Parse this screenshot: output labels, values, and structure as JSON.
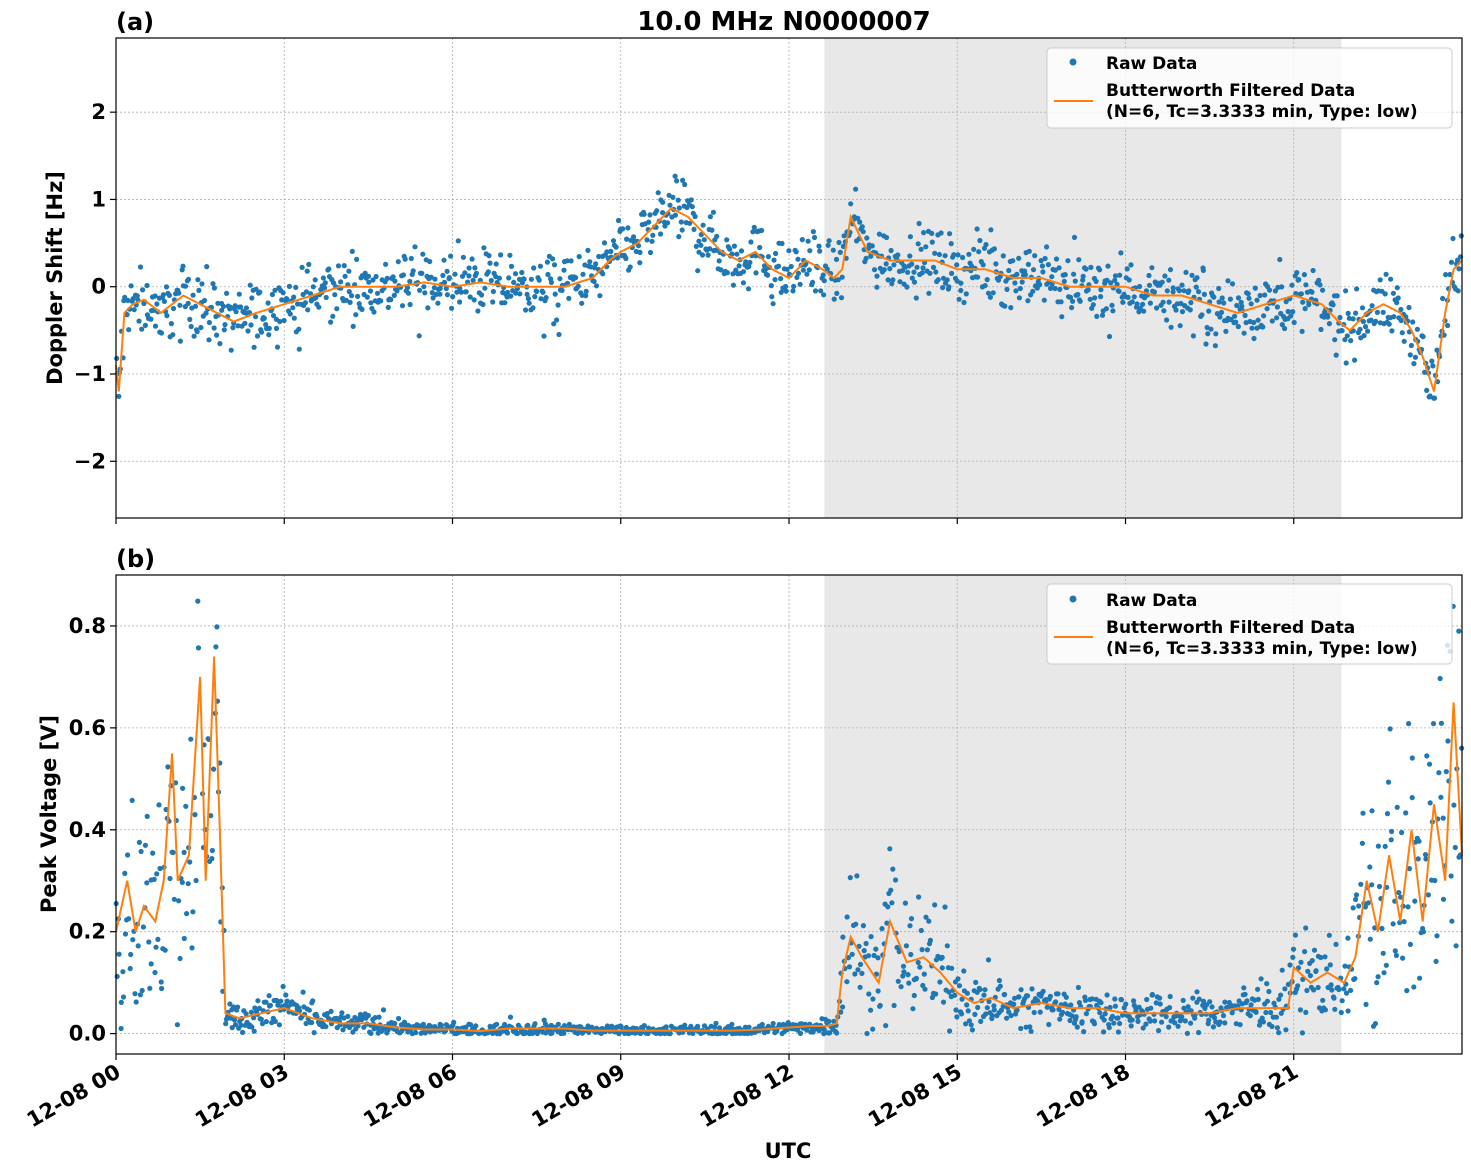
{
  "figure": {
    "title": "10.0 MHz N0000007",
    "xlabel": "UTC"
  },
  "colors": {
    "raw": "#1f77b4",
    "filtered": "#ff7f0e",
    "night_shade": "#e8e8e8",
    "grid": "#b0b0b0"
  },
  "legend": {
    "raw_label": "Raw Data",
    "filtered_line1": "Butterworth Filtered Data",
    "filtered_line2": "(N=6, Tc=3.3333 min, Type: low)"
  },
  "chart_data": [
    {
      "type": "scatter",
      "panel": "(a)",
      "title": "10.0 MHz N0000007",
      "xlabel": "",
      "ylabel": "Doppler Shift [Hz]",
      "xlim_hours": [
        0,
        24
      ],
      "ylim": [
        -2.65,
        2.85
      ],
      "yticks": [
        -2,
        -1,
        0,
        1,
        2
      ],
      "ytick_labels": [
        "−2",
        "−1",
        "0",
        "1",
        "2"
      ],
      "grid": true,
      "legend_position": "top-right",
      "shaded_region_hours": [
        12.63,
        21.85
      ],
      "series": [
        {
          "name": "Raw Data",
          "style": "points",
          "spread_hz": 0.25,
          "x_hours": [
            0,
            0.05,
            0.15,
            0.3,
            0.5,
            0.8,
            1.2,
            1.5,
            1.8,
            2.1,
            2.5,
            3.0,
            3.5,
            4.0,
            4.5,
            5.0,
            5.5,
            6.0,
            6.5,
            7.0,
            7.5,
            8.0,
            8.5,
            8.8,
            9.0,
            9.3,
            9.6,
            9.9,
            10.2,
            10.5,
            10.8,
            11.1,
            11.4,
            11.7,
            12.0,
            12.3,
            12.6,
            12.8,
            12.95,
            13.1,
            13.4,
            13.8,
            14.2,
            14.6,
            15.0,
            15.5,
            16.0,
            16.5,
            17.0,
            17.5,
            18.0,
            18.5,
            19.0,
            19.5,
            20.0,
            20.5,
            21.0,
            21.5,
            21.8,
            22.0,
            22.3,
            22.6,
            22.9,
            23.1,
            23.3,
            23.5,
            23.7,
            23.85,
            24.0
          ],
          "y": [
            -0.9,
            -1.2,
            -0.3,
            -0.2,
            -0.15,
            -0.3,
            -0.1,
            -0.2,
            -0.3,
            -0.4,
            -0.3,
            -0.2,
            -0.1,
            0.0,
            0.0,
            0.0,
            0.05,
            0.0,
            0.05,
            0.0,
            0.0,
            0.0,
            0.1,
            0.3,
            0.4,
            0.5,
            0.7,
            0.9,
            0.8,
            0.6,
            0.4,
            0.3,
            0.4,
            0.2,
            0.1,
            0.3,
            0.2,
            0.1,
            0.2,
            0.8,
            0.4,
            0.3,
            0.3,
            0.3,
            0.2,
            0.2,
            0.1,
            0.1,
            0.0,
            0.0,
            0.0,
            -0.1,
            -0.1,
            -0.2,
            -0.3,
            -0.2,
            -0.1,
            -0.2,
            -0.4,
            -0.5,
            -0.3,
            -0.2,
            -0.3,
            -0.5,
            -0.8,
            -1.2,
            -0.3,
            0.2,
            0.3
          ]
        },
        {
          "name": "Butterworth Filtered Data (N=6, Tc=3.3333 min, Type: low)",
          "style": "line",
          "x_hours": [
            0,
            0.05,
            0.15,
            0.3,
            0.5,
            0.8,
            1.2,
            1.5,
            1.8,
            2.1,
            2.5,
            3.0,
            3.5,
            4.0,
            4.5,
            5.0,
            5.5,
            6.0,
            6.5,
            7.0,
            7.5,
            8.0,
            8.5,
            8.8,
            9.0,
            9.3,
            9.6,
            9.9,
            10.2,
            10.5,
            10.8,
            11.1,
            11.4,
            11.7,
            12.0,
            12.3,
            12.6,
            12.8,
            12.95,
            13.1,
            13.4,
            13.8,
            14.2,
            14.6,
            15.0,
            15.5,
            16.0,
            16.5,
            17.0,
            17.5,
            18.0,
            18.5,
            19.0,
            19.5,
            20.0,
            20.5,
            21.0,
            21.5,
            21.8,
            22.0,
            22.3,
            22.6,
            22.9,
            23.1,
            23.3,
            23.5,
            23.7,
            23.85,
            24.0
          ],
          "y": [
            -0.9,
            -1.2,
            -0.3,
            -0.2,
            -0.15,
            -0.3,
            -0.1,
            -0.2,
            -0.3,
            -0.4,
            -0.3,
            -0.2,
            -0.1,
            0.0,
            0.0,
            0.0,
            0.05,
            0.0,
            0.05,
            0.0,
            0.0,
            0.0,
            0.1,
            0.3,
            0.4,
            0.5,
            0.7,
            0.9,
            0.8,
            0.6,
            0.4,
            0.3,
            0.4,
            0.2,
            0.1,
            0.3,
            0.2,
            0.1,
            0.2,
            0.8,
            0.4,
            0.3,
            0.3,
            0.3,
            0.2,
            0.2,
            0.1,
            0.1,
            0.0,
            0.0,
            0.0,
            -0.1,
            -0.1,
            -0.2,
            -0.3,
            -0.2,
            -0.1,
            -0.2,
            -0.4,
            -0.5,
            -0.3,
            -0.2,
            -0.3,
            -0.5,
            -0.8,
            -1.2,
            -0.3,
            0.2,
            0.3
          ]
        }
      ]
    },
    {
      "type": "scatter",
      "panel": "(b)",
      "title": "",
      "xlabel": "UTC",
      "ylabel": "Peak Voltage [V]",
      "xlim_hours": [
        0,
        24
      ],
      "ylim": [
        -0.04,
        0.9
      ],
      "yticks": [
        0.0,
        0.2,
        0.4,
        0.6,
        0.8
      ],
      "ytick_labels": [
        "0.0",
        "0.2",
        "0.4",
        "0.6",
        "0.8"
      ],
      "xtick_hours": [
        0,
        3,
        6,
        9,
        12,
        15,
        18,
        21
      ],
      "xtick_labels": [
        "12-08 00",
        "12-08 03",
        "12-08 06",
        "12-08 09",
        "12-08 12",
        "12-08 15",
        "12-08 18",
        "12-08 21"
      ],
      "grid": true,
      "legend_position": "top-right",
      "shaded_region_hours": [
        12.63,
        21.85
      ],
      "series": [
        {
          "name": "Raw Data",
          "style": "points",
          "spread_v": 0.06,
          "x_hours": [
            0,
            0.1,
            0.2,
            0.35,
            0.5,
            0.7,
            0.85,
            1.0,
            1.1,
            1.3,
            1.5,
            1.6,
            1.75,
            1.85,
            1.95,
            2.2,
            2.6,
            3.0,
            3.5,
            4.0,
            4.5,
            5.0,
            5.5,
            6.0,
            6.5,
            7.0,
            7.5,
            8.0,
            8.5,
            9.0,
            9.5,
            10.0,
            10.5,
            11.0,
            11.5,
            12.0,
            12.4,
            12.7,
            12.85,
            12.95,
            13.1,
            13.3,
            13.6,
            13.8,
            14.1,
            14.4,
            14.7,
            15.0,
            15.3,
            15.6,
            16.0,
            16.5,
            17.0,
            17.5,
            18.0,
            18.5,
            19.0,
            19.5,
            20.0,
            20.5,
            20.9,
            21.0,
            21.3,
            21.6,
            21.9,
            22.1,
            22.3,
            22.5,
            22.7,
            22.9,
            23.1,
            23.3,
            23.5,
            23.7,
            23.85,
            24.0
          ],
          "y": [
            0.2,
            0.25,
            0.3,
            0.2,
            0.25,
            0.22,
            0.3,
            0.55,
            0.3,
            0.35,
            0.7,
            0.3,
            0.74,
            0.4,
            0.04,
            0.03,
            0.04,
            0.05,
            0.03,
            0.02,
            0.02,
            0.012,
            0.008,
            0.008,
            0.005,
            0.01,
            0.01,
            0.01,
            0.006,
            0.006,
            0.006,
            0.006,
            0.006,
            0.006,
            0.008,
            0.012,
            0.015,
            0.015,
            0.02,
            0.12,
            0.19,
            0.15,
            0.1,
            0.22,
            0.14,
            0.15,
            0.12,
            0.08,
            0.06,
            0.07,
            0.05,
            0.06,
            0.05,
            0.05,
            0.04,
            0.04,
            0.04,
            0.04,
            0.05,
            0.05,
            0.05,
            0.13,
            0.1,
            0.12,
            0.1,
            0.15,
            0.3,
            0.2,
            0.35,
            0.22,
            0.4,
            0.22,
            0.45,
            0.3,
            0.65,
            0.35
          ]
        },
        {
          "name": "Butterworth Filtered Data (N=6, Tc=3.3333 min, Type: low)",
          "style": "line",
          "x_hours": [
            0,
            0.1,
            0.2,
            0.35,
            0.5,
            0.7,
            0.85,
            1.0,
            1.1,
            1.3,
            1.5,
            1.6,
            1.75,
            1.85,
            1.95,
            2.2,
            2.6,
            3.0,
            3.5,
            4.0,
            4.5,
            5.0,
            5.5,
            6.0,
            6.5,
            7.0,
            7.5,
            8.0,
            8.5,
            9.0,
            9.5,
            10.0,
            10.5,
            11.0,
            11.5,
            12.0,
            12.4,
            12.7,
            12.85,
            12.95,
            13.1,
            13.3,
            13.6,
            13.8,
            14.1,
            14.4,
            14.7,
            15.0,
            15.3,
            15.6,
            16.0,
            16.5,
            17.0,
            17.5,
            18.0,
            18.5,
            19.0,
            19.5,
            20.0,
            20.5,
            20.9,
            21.0,
            21.3,
            21.6,
            21.9,
            22.1,
            22.3,
            22.5,
            22.7,
            22.9,
            23.1,
            23.3,
            23.5,
            23.7,
            23.85,
            24.0
          ],
          "y": [
            0.2,
            0.25,
            0.3,
            0.2,
            0.25,
            0.22,
            0.3,
            0.55,
            0.3,
            0.35,
            0.7,
            0.3,
            0.74,
            0.4,
            0.04,
            0.03,
            0.04,
            0.05,
            0.03,
            0.02,
            0.02,
            0.012,
            0.008,
            0.008,
            0.005,
            0.01,
            0.01,
            0.01,
            0.006,
            0.006,
            0.006,
            0.006,
            0.006,
            0.006,
            0.008,
            0.012,
            0.015,
            0.015,
            0.02,
            0.12,
            0.19,
            0.15,
            0.1,
            0.22,
            0.14,
            0.15,
            0.12,
            0.08,
            0.06,
            0.07,
            0.05,
            0.06,
            0.05,
            0.05,
            0.04,
            0.04,
            0.04,
            0.04,
            0.05,
            0.05,
            0.05,
            0.13,
            0.1,
            0.12,
            0.1,
            0.15,
            0.3,
            0.2,
            0.35,
            0.22,
            0.4,
            0.22,
            0.45,
            0.3,
            0.65,
            0.35
          ]
        }
      ]
    }
  ]
}
